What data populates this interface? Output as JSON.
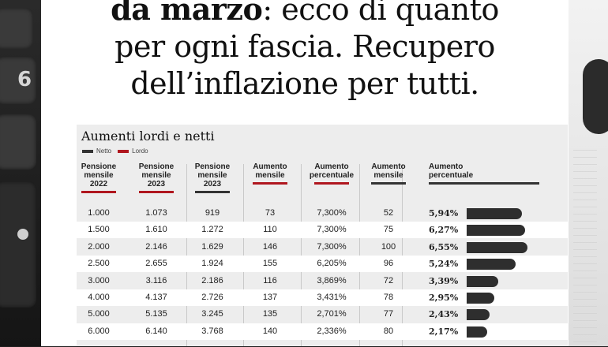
{
  "headline": {
    "line1_bold": "da marzo",
    "line1_rest": ": ecco di quanto",
    "line2": "per ogni fascia. Recupero",
    "line3": "dell’inflazione per tutti."
  },
  "infobox": {
    "title": "Aumenti lordi e netti",
    "legend": {
      "netto": "Netto",
      "lordo": "Lordo",
      "netto_color": "#333333",
      "lordo_color": "#b0171f"
    },
    "columns": [
      {
        "label": [
          "Pensione",
          "mensile",
          "2022"
        ],
        "underline": "red"
      },
      {
        "label": [
          "Pensione",
          "mensile",
          "2023"
        ],
        "underline": "red"
      },
      {
        "label": [
          "Pensione",
          "mensile",
          "2023"
        ],
        "underline": "dark"
      },
      {
        "label": [
          "Aumento",
          "mensile"
        ],
        "underline": "red"
      },
      {
        "label": [
          "Aumento",
          "percentuale"
        ],
        "underline": "red"
      },
      {
        "label": [
          "Aumento",
          "mensile"
        ],
        "underline": "dark"
      },
      {
        "label": [
          "Aumento",
          "percentuale"
        ],
        "underline": "dark"
      }
    ],
    "rows": [
      {
        "p2022": "1.000",
        "lordo2023": "1.073",
        "netto2023": "919",
        "aum_lordo": "73",
        "pct_lordo": "7,300%",
        "aum_netto": "52",
        "pct_netto": "5,94%",
        "pct_value": 5.94
      },
      {
        "p2022": "1.500",
        "lordo2023": "1.610",
        "netto2023": "1.272",
        "aum_lordo": "110",
        "pct_lordo": "7,300%",
        "aum_netto": "75",
        "pct_netto": "6,27%",
        "pct_value": 6.27
      },
      {
        "p2022": "2.000",
        "lordo2023": "2.146",
        "netto2023": "1.629",
        "aum_lordo": "146",
        "pct_lordo": "7,300%",
        "aum_netto": "100",
        "pct_netto": "6,55%",
        "pct_value": 6.55
      },
      {
        "p2022": "2.500",
        "lordo2023": "2.655",
        "netto2023": "1.924",
        "aum_lordo": "155",
        "pct_lordo": "6,205%",
        "aum_netto": "96",
        "pct_netto": "5,24%",
        "pct_value": 5.24
      },
      {
        "p2022": "3.000",
        "lordo2023": "3.116",
        "netto2023": "2.186",
        "aum_lordo": "116",
        "pct_lordo": "3,869%",
        "aum_netto": "72",
        "pct_netto": "3,39%",
        "pct_value": 3.39
      },
      {
        "p2022": "4.000",
        "lordo2023": "4.137",
        "netto2023": "2.726",
        "aum_lordo": "137",
        "pct_lordo": "3,431%",
        "aum_netto": "78",
        "pct_netto": "2,95%",
        "pct_value": 2.95
      },
      {
        "p2022": "5.000",
        "lordo2023": "5.135",
        "netto2023": "3.245",
        "aum_lordo": "135",
        "pct_lordo": "2,701%",
        "aum_netto": "77",
        "pct_netto": "2,43%",
        "pct_value": 2.43
      },
      {
        "p2022": "6.000",
        "lordo2023": "6.140",
        "netto2023": "3.768",
        "aum_lordo": "140",
        "pct_lordo": "2,336%",
        "aum_netto": "80",
        "pct_netto": "2,17%",
        "pct_value": 2.17
      }
    ]
  },
  "background": {
    "calculator_key_label": "6"
  }
}
